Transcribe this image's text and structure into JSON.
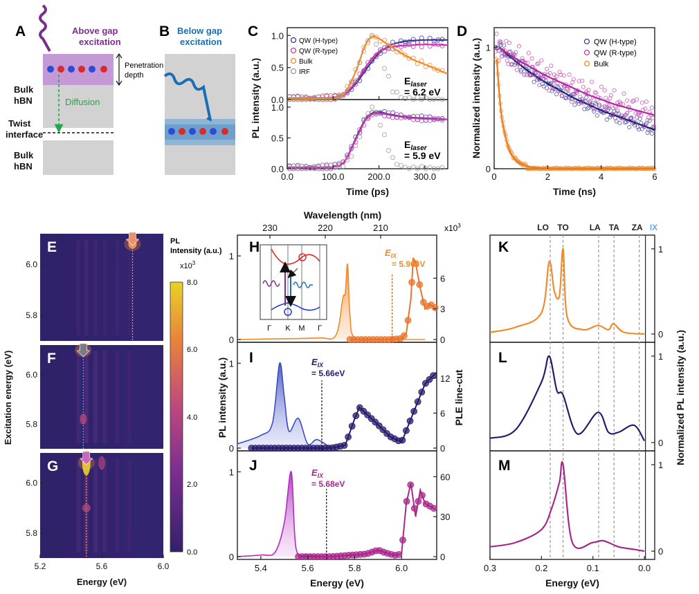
{
  "labels": {
    "A": "A",
    "B": "B",
    "C": "C",
    "D": "D",
    "E": "E",
    "F": "F",
    "G": "G",
    "H": "H",
    "I": "I",
    "J": "J",
    "K": "K",
    "L": "L",
    "M": "M"
  },
  "panelA": {
    "title_line1": "Above gap",
    "title_line2": "excitation",
    "pen_line1": "Penetration",
    "pen_line2": "depth",
    "bulk1_line1": "Bulk",
    "bulk1_line2": "hBN",
    "diffusion": "Diffusion",
    "twist_line1": "Twist",
    "twist_line2": "interface",
    "bulk2_line1": "Bulk",
    "bulk2_line2": "hBN",
    "colors": {
      "purple": "#7b2d8e",
      "violet_region": "#c39ad6",
      "gray": "#d2d2d2",
      "green": "#22a84a"
    }
  },
  "panelB": {
    "title_line1": "Below gap",
    "title_line2": "excitation",
    "colors": {
      "blue": "#1b6db3",
      "layer": "#8fb6d6"
    }
  },
  "panelC": {
    "ylabel": "PL intensity (a.u.)",
    "xlabel": "Time (ps)",
    "legend": [
      "QW (H-type)",
      "QW (R-type)",
      "Bulk",
      "IRF"
    ],
    "top_energy": "6.2 eV",
    "bottom_energy": "5.9 eV",
    "elaser_main": "E",
    "elaser_sub": "laser",
    "elaser_eq": "= "
  },
  "panelD": {
    "ylabel": "Normalized intensity (a.u.)",
    "xlabel": "Time (ns)",
    "legend": [
      "QW (H-type)",
      "QW (R-type)",
      "Bulk"
    ]
  },
  "panelEFG": {
    "ylabel": "Excitation energy (eV)",
    "xlabel": "Energy (eV)",
    "cbar_title_line1": "PL",
    "cbar_title_line2": "Intensity (a.u.)",
    "cbar_scale": "x10",
    "cbar_exp": "3",
    "cbar_ticks": [
      "8.0",
      "6.0",
      "4.0",
      "2.0",
      "0.0"
    ]
  },
  "panelHIJ": {
    "top_xlabel": "Wavelength (nm)",
    "top_ticks": [
      "230",
      "220",
      "210"
    ],
    "xlabel": "Energy (eV)",
    "ylabel_left": "PL intensity (a.u.)",
    "ylabel_right": "PLE line-cut",
    "right_scale": "x10",
    "right_exp": "3",
    "eix_H": "= 5.96eV",
    "eix_I": "= 5.66eV",
    "eix_J": "= 5.68eV",
    "eix_main": "E",
    "eix_sub": "IX",
    "inset_labels": [
      "Γ",
      "K",
      "M",
      "Γ"
    ]
  },
  "panelKLM": {
    "phonons": [
      "LO",
      "TO",
      "LA",
      "TA",
      "ZA",
      "IX"
    ],
    "xlabel": "Energy (eV)",
    "ylabel": "Normalized PL intensity (a.u.)"
  },
  "chart_data": [
    {
      "type": "line",
      "panel": "C (top)",
      "xlabel": "Time (ps)",
      "ylabel": "PL intensity (a.u.)",
      "xlim": [
        0,
        350
      ],
      "ylim": [
        0,
        1.1
      ],
      "annotation": "E_laser = 6.2 eV",
      "series": [
        {
          "name": "QW (H-type)",
          "x": [
            0,
            50,
            100,
            125,
            150,
            175,
            200,
            225,
            250,
            275,
            300,
            350
          ],
          "y": [
            0.02,
            0.02,
            0.03,
            0.08,
            0.25,
            0.5,
            0.72,
            0.85,
            0.9,
            0.92,
            0.93,
            0.93
          ]
        },
        {
          "name": "QW (R-type)",
          "x": [
            0,
            50,
            100,
            125,
            150,
            175,
            200,
            225,
            250,
            275,
            300,
            350
          ],
          "y": [
            0.01,
            0.02,
            0.03,
            0.08,
            0.28,
            0.55,
            0.75,
            0.82,
            0.84,
            0.85,
            0.86,
            0.85
          ]
        },
        {
          "name": "Bulk",
          "x": [
            0,
            50,
            100,
            125,
            150,
            170,
            185,
            200,
            225,
            250,
            275,
            300,
            350
          ],
          "y": [
            0.01,
            0.01,
            0.02,
            0.1,
            0.45,
            0.85,
            0.98,
            0.95,
            0.83,
            0.72,
            0.62,
            0.55,
            0.4
          ]
        },
        {
          "name": "IRF",
          "x": [
            0,
            100,
            125,
            150,
            170,
            185,
            200,
            215,
            230,
            250,
            275,
            300
          ],
          "y": [
            0.0,
            0.0,
            0.05,
            0.35,
            0.85,
            1.0,
            0.8,
            0.45,
            0.15,
            0.03,
            0.0,
            0.0
          ]
        }
      ]
    },
    {
      "type": "line",
      "panel": "C (bottom)",
      "xlabel": "Time (ps)",
      "ylabel": "PL intensity (a.u.)",
      "xlim": [
        0,
        350
      ],
      "ylim": [
        0,
        1.1
      ],
      "annotation": "E_laser = 5.9 eV",
      "series": [
        {
          "name": "QW (H-type)",
          "x": [
            0,
            50,
            100,
            125,
            150,
            170,
            185,
            200,
            225,
            250,
            275,
            300,
            350
          ],
          "y": [
            0.02,
            0.02,
            0.03,
            0.12,
            0.5,
            0.8,
            0.9,
            0.92,
            0.88,
            0.85,
            0.83,
            0.82,
            0.8
          ]
        },
        {
          "name": "QW (R-type)",
          "x": [
            0,
            50,
            100,
            125,
            150,
            170,
            185,
            200,
            225,
            250,
            275,
            300,
            350
          ],
          "y": [
            0.01,
            0.02,
            0.03,
            0.12,
            0.48,
            0.78,
            0.88,
            0.9,
            0.87,
            0.84,
            0.82,
            0.81,
            0.8
          ]
        },
        {
          "name": "IRF",
          "x": [
            0,
            100,
            125,
            150,
            170,
            185,
            200,
            215,
            230,
            250,
            275,
            300
          ],
          "y": [
            0.0,
            0.0,
            0.05,
            0.35,
            0.85,
            1.0,
            0.8,
            0.45,
            0.15,
            0.03,
            0.0,
            0.0
          ]
        }
      ]
    },
    {
      "type": "scatter",
      "panel": "D",
      "xlabel": "Time (ns)",
      "ylabel": "Normalized intensity (a.u.)",
      "xlim": [
        0,
        6
      ],
      "ylim": [
        0,
        1.15
      ],
      "series": [
        {
          "name": "QW (H-type)",
          "x": [
            0.2,
            0.5,
            1,
            1.5,
            2,
            2.5,
            3,
            3.5,
            4,
            4.5,
            5,
            5.5,
            6
          ],
          "y": [
            1.0,
            0.94,
            0.85,
            0.77,
            0.7,
            0.64,
            0.58,
            0.53,
            0.48,
            0.44,
            0.4,
            0.36,
            0.32
          ]
        },
        {
          "name": "QW (R-type)",
          "x": [
            0.2,
            0.5,
            1,
            1.5,
            2,
            2.5,
            3,
            3.5,
            4,
            4.5,
            5,
            5.5,
            6
          ],
          "y": [
            1.0,
            0.95,
            0.88,
            0.82,
            0.76,
            0.71,
            0.66,
            0.61,
            0.57,
            0.53,
            0.5,
            0.47,
            0.44
          ]
        },
        {
          "name": "Bulk",
          "x": [
            0.1,
            0.2,
            0.3,
            0.5,
            0.7,
            1,
            1.5,
            2,
            3,
            4,
            6
          ],
          "y": [
            0.9,
            0.6,
            0.4,
            0.2,
            0.1,
            0.04,
            0.01,
            0.0,
            0.0,
            0.0,
            0.0
          ]
        }
      ]
    },
    {
      "type": "heatmap",
      "panel": "E, F, G",
      "xlabel": "Energy (eV)",
      "ylabel": "Excitation energy (eV)",
      "xlim": [
        5.2,
        6.0
      ],
      "ylim": [
        5.7,
        6.12
      ],
      "x_ticks": [
        5.2,
        5.6,
        6.0
      ],
      "y_ticks": [
        5.8,
        6.0
      ],
      "colorbar": {
        "label": "PL Intensity (a.u.) x10^3",
        "range": [
          0,
          8
        ]
      },
      "peaks": [
        {
          "panel": "E",
          "emission_eV": 5.8,
          "excitation_eV": 6.08
        },
        {
          "panel": "F",
          "emission_eV": 5.48,
          "excitation_eV": 6.1
        },
        {
          "panel": "G",
          "emission_eV": 5.5,
          "excitation_eV": 6.08
        }
      ]
    },
    {
      "type": "line",
      "panel": "H",
      "xlabel": "Energy (eV)",
      "ylabel": "PL intensity (a.u.)",
      "xlim": [
        5.3,
        6.15
      ],
      "annotation": "E_IX = 5.96eV",
      "series": [
        {
          "name": "PL",
          "x": [
            5.3,
            5.5,
            5.65,
            5.72,
            5.75,
            5.76,
            5.77,
            5.78,
            5.8,
            5.9,
            6.0,
            6.1
          ],
          "y": [
            0.0,
            0.01,
            0.02,
            0.05,
            0.5,
            0.55,
            0.9,
            0.3,
            0.02,
            0.0,
            0.0,
            0.0
          ]
        },
        {
          "name": "PLE",
          "x": [
            5.78,
            5.85,
            5.95,
            6.0,
            6.02,
            6.04,
            6.05,
            6.06,
            6.08,
            6.1,
            6.12,
            6.15
          ],
          "y": [
            0,
            0,
            0,
            0.1,
            0.6,
            4.0,
            8.0,
            7.5,
            5.0,
            3.0,
            3.5,
            3.0
          ]
        }
      ]
    },
    {
      "type": "line",
      "panel": "I",
      "xlabel": "Energy (eV)",
      "ylabel": "PL intensity (a.u.)",
      "xlim": [
        5.3,
        6.15
      ],
      "annotation": "E_IX = 5.66eV",
      "series": [
        {
          "name": "PL",
          "x": [
            5.3,
            5.4,
            5.45,
            5.48,
            5.5,
            5.52,
            5.56,
            5.6,
            5.64,
            5.7
          ],
          "y": [
            0.05,
            0.15,
            0.3,
            1.0,
            0.6,
            0.2,
            0.35,
            0.05,
            0.1,
            0.0
          ]
        },
        {
          "name": "PLE",
          "x": [
            5.36,
            5.5,
            5.7,
            5.76,
            5.8,
            5.82,
            5.86,
            5.9,
            5.95,
            6.0,
            6.05,
            6.1,
            6.15
          ],
          "y": [
            0,
            0,
            0,
            0.5,
            5.0,
            7.0,
            5.5,
            4.0,
            2.0,
            1.0,
            6.0,
            11.0,
            13.0
          ]
        }
      ]
    },
    {
      "type": "line",
      "panel": "J",
      "xlabel": "Energy (eV)",
      "ylabel": "PL intensity (a.u.)",
      "xlim": [
        5.3,
        6.15
      ],
      "annotation": "E_IX = 5.68eV",
      "series": [
        {
          "name": "PL",
          "x": [
            5.3,
            5.4,
            5.46,
            5.5,
            5.53,
            5.55,
            5.6,
            5.7
          ],
          "y": [
            0.0,
            0.02,
            0.05,
            0.4,
            1.0,
            0.1,
            0.02,
            0.0
          ]
        },
        {
          "name": "PLE",
          "x": [
            5.56,
            5.7,
            5.85,
            5.9,
            5.93,
            5.97,
            6.0,
            6.02,
            6.04,
            6.06,
            6.08,
            6.1,
            6.15
          ],
          "y": [
            0,
            0,
            2,
            5,
            3,
            1,
            2,
            40,
            55,
            30,
            50,
            40,
            35
          ]
        }
      ]
    },
    {
      "type": "line",
      "panel": "K, L, M",
      "xlabel": "Energy (eV)",
      "ylabel": "Normalized PL intensity (a.u.)",
      "xlim": [
        0.3,
        -0.02
      ],
      "x_ticks": [
        0.3,
        0.2,
        0.1,
        0.0
      ],
      "phonon_lines_eV": {
        "LO": 0.183,
        "TO": 0.158,
        "LA": 0.089,
        "TA": 0.059,
        "ZA": 0.01,
        "IX": -0.002
      },
      "series": [
        {
          "name": "K",
          "x": [
            0.3,
            0.25,
            0.2,
            0.185,
            0.175,
            0.165,
            0.158,
            0.15,
            0.12,
            0.09,
            0.07,
            0.06,
            0.04,
            0.0
          ],
          "y": [
            0.02,
            0.08,
            0.25,
            0.85,
            0.5,
            0.45,
            1.0,
            0.2,
            0.05,
            0.1,
            0.05,
            0.12,
            0.02,
            0.0
          ]
        },
        {
          "name": "L",
          "x": [
            0.3,
            0.25,
            0.2,
            0.185,
            0.17,
            0.158,
            0.13,
            0.09,
            0.07,
            0.05,
            0.02,
            0.0
          ],
          "y": [
            0.05,
            0.15,
            0.7,
            1.0,
            0.6,
            0.55,
            0.1,
            0.35,
            0.12,
            0.12,
            0.2,
            0.02
          ]
        },
        {
          "name": "M",
          "x": [
            0.3,
            0.25,
            0.2,
            0.18,
            0.165,
            0.158,
            0.14,
            0.1,
            0.08,
            0.05,
            0.02,
            0.0
          ],
          "y": [
            0.05,
            0.1,
            0.25,
            0.5,
            0.8,
            1.0,
            0.1,
            0.1,
            0.12,
            0.05,
            0.02,
            0.0
          ]
        }
      ]
    }
  ]
}
